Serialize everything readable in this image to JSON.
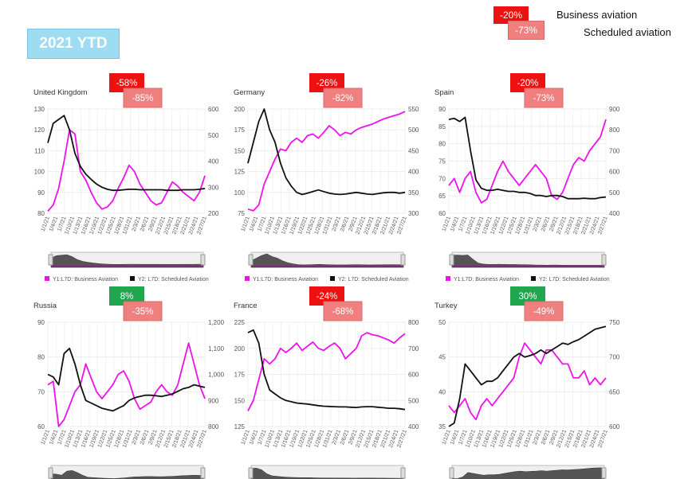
{
  "header": {
    "title": "2021 YTD",
    "legend": {
      "business_pct": "-20%",
      "business_label": "Business aviation",
      "scheduled_pct": "-73%",
      "scheduled_label": "Scheduled aviation"
    }
  },
  "colors": {
    "business": "#ee11ee",
    "scheduled": "#111111",
    "badge_red": "#ee1111",
    "badge_pink": "#f08080",
    "badge_green": "#1fa64f"
  },
  "series_legend": {
    "y1": "Y1:L7D: Business Aviation",
    "y2": "Y2: L7D: Scheduled Aviation"
  },
  "x_ticks": [
    "1/1/21",
    "1/4/21",
    "1/7/21",
    "1/10/21",
    "1/13/21",
    "1/16/21",
    "1/19/21",
    "1/22/21",
    "1/25/21",
    "1/28/21",
    "1/31/21",
    "2/3/21",
    "2/6/21",
    "2/9/21",
    "2/12/21",
    "2/15/21",
    "2/18/21",
    "2/21/21",
    "2/24/21",
    "2/27/21"
  ],
  "chart_data": [
    {
      "type": "line",
      "title": "United Kingdom",
      "business_pct": "-58%",
      "scheduled_pct": "-85%",
      "business_badge": "red",
      "y1_ticks": [
        "80",
        "90",
        "100",
        "110",
        "120",
        "130"
      ],
      "y1lim": [
        80,
        130
      ],
      "y2_ticks": [
        "200",
        "300",
        "400",
        "500",
        "600"
      ],
      "y2lim": [
        200,
        600
      ],
      "series": [
        {
          "name": "Y1:L7D: Business Aviation",
          "axis": "y1",
          "values": [
            81,
            84,
            92,
            105,
            120,
            118,
            100,
            96,
            90,
            85,
            82,
            83,
            86,
            92,
            97,
            103,
            100,
            94,
            90,
            86,
            84,
            85,
            90,
            95,
            93,
            90,
            88,
            86,
            90,
            98
          ]
        },
        {
          "name": "Y2: L7D: Scheduled Aviation",
          "axis": "y2",
          "values": [
            470,
            545,
            560,
            575,
            520,
            430,
            380,
            350,
            330,
            312,
            300,
            292,
            288,
            288,
            290,
            292,
            292,
            290,
            290,
            290,
            290,
            290,
            288,
            288,
            288,
            290,
            290,
            290,
            292,
            295
          ]
        }
      ]
    },
    {
      "type": "line",
      "title": "Germany",
      "business_pct": "-26%",
      "scheduled_pct": "-82%",
      "business_badge": "red",
      "y1_ticks": [
        "75",
        "100",
        "125",
        "150",
        "175",
        "200"
      ],
      "y1lim": [
        75,
        200
      ],
      "y2_ticks": [
        "300",
        "350",
        "400",
        "450",
        "500",
        "550"
      ],
      "y2lim": [
        300,
        550
      ],
      "series": [
        {
          "name": "Y1:L7D: Business Aviation",
          "axis": "y1",
          "values": [
            80,
            78,
            85,
            110,
            125,
            140,
            152,
            150,
            160,
            165,
            160,
            168,
            170,
            165,
            172,
            180,
            175,
            168,
            172,
            170,
            175,
            178,
            180,
            182,
            185,
            188,
            190,
            192,
            194,
            197
          ]
        },
        {
          "name": "Y2: L7D: Scheduled Aviation",
          "axis": "y2",
          "values": [
            420,
            470,
            520,
            550,
            500,
            470,
            420,
            385,
            365,
            350,
            345,
            348,
            352,
            356,
            352,
            348,
            346,
            345,
            346,
            348,
            350,
            348,
            346,
            345,
            347,
            349,
            350,
            350,
            348,
            350
          ]
        }
      ]
    },
    {
      "type": "line",
      "title": "Spain",
      "business_pct": "-20%",
      "scheduled_pct": "-73%",
      "business_badge": "red",
      "y1_ticks": [
        "60",
        "65",
        "70",
        "75",
        "80",
        "85",
        "90"
      ],
      "y1lim": [
        60,
        90
      ],
      "y2_ticks": [
        "400",
        "500",
        "600",
        "700",
        "800",
        "900"
      ],
      "y2lim": [
        400,
        900
      ],
      "series": [
        {
          "name": "Y1:L7D: Business Aviation",
          "axis": "y1",
          "values": [
            68,
            70,
            66,
            70,
            72,
            66,
            63,
            64,
            68,
            72,
            75,
            72,
            70,
            68,
            70,
            72,
            74,
            72,
            70,
            65,
            64,
            66,
            70,
            74,
            76,
            75,
            78,
            80,
            82,
            87
          ]
        },
        {
          "name": "Y2: L7D: Scheduled Aviation",
          "axis": "y2",
          "values": [
            850,
            855,
            840,
            860,
            700,
            560,
            520,
            510,
            510,
            515,
            510,
            505,
            505,
            500,
            500,
            495,
            485,
            485,
            480,
            485,
            485,
            480,
            470,
            470,
            470,
            472,
            470,
            470,
            475,
            478
          ]
        }
      ]
    },
    {
      "type": "line",
      "title": "Russia",
      "business_pct": "8%",
      "scheduled_pct": "-35%",
      "business_badge": "green",
      "y1_ticks": [
        "60",
        "70",
        "80",
        "90"
      ],
      "y1lim": [
        60,
        90
      ],
      "y2_ticks": [
        "800",
        "900",
        "1,000",
        "1,100",
        "1,200"
      ],
      "y2lim": [
        800,
        1200
      ],
      "series": [
        {
          "name": "Y1:L7D: Business Aviation",
          "axis": "y1",
          "values": [
            72,
            73,
            60,
            62,
            66,
            70,
            72,
            78,
            74,
            70,
            68,
            70,
            72,
            75,
            76,
            73,
            68,
            65,
            66,
            67,
            70,
            72,
            70,
            69,
            72,
            78,
            84,
            78,
            72,
            68
          ]
        },
        {
          "name": "Y2: L7D: Scheduled Aviation",
          "axis": "y2",
          "values": [
            1000,
            990,
            960,
            1080,
            1100,
            1040,
            960,
            900,
            890,
            880,
            870,
            865,
            860,
            870,
            880,
            900,
            910,
            915,
            920,
            920,
            918,
            915,
            920,
            925,
            935,
            945,
            950,
            960,
            955,
            950
          ]
        }
      ]
    },
    {
      "type": "line",
      "title": "France",
      "business_pct": "-24%",
      "scheduled_pct": "-68%",
      "business_badge": "red",
      "y1_ticks": [
        "125",
        "150",
        "175",
        "200",
        "225"
      ],
      "y1lim": [
        125,
        225
      ],
      "y2_ticks": [
        "400",
        "500",
        "600",
        "700",
        "800"
      ],
      "y2lim": [
        400,
        800
      ],
      "series": [
        {
          "name": "Y1:L7D: Business Aviation",
          "axis": "y1",
          "values": [
            140,
            150,
            170,
            190,
            185,
            190,
            200,
            196,
            200,
            205,
            198,
            202,
            206,
            200,
            198,
            202,
            205,
            200,
            190,
            195,
            200,
            212,
            215,
            213,
            212,
            210,
            208,
            205,
            210,
            214
          ]
        },
        {
          "name": "Y2: L7D: Scheduled Aviation",
          "axis": "y2",
          "values": [
            760,
            770,
            720,
            600,
            540,
            525,
            510,
            500,
            495,
            490,
            488,
            486,
            483,
            480,
            478,
            477,
            476,
            475,
            475,
            474,
            473,
            475,
            476,
            476,
            474,
            472,
            470,
            470,
            468,
            465
          ]
        }
      ]
    },
    {
      "type": "line",
      "title": "Turkey",
      "business_pct": "30%",
      "scheduled_pct": "-49%",
      "business_badge": "green",
      "y1_ticks": [
        "35",
        "40",
        "45",
        "50"
      ],
      "y1lim": [
        35,
        50
      ],
      "y2_ticks": [
        "600",
        "650",
        "700",
        "750"
      ],
      "y2lim": [
        600,
        750
      ],
      "series": [
        {
          "name": "Y1:L7D: Business Aviation",
          "axis": "y1",
          "values": [
            38,
            37,
            38,
            39,
            37,
            36,
            38,
            39,
            38,
            39,
            40,
            41,
            42,
            45,
            47,
            46,
            45,
            44,
            46,
            46,
            45,
            44,
            44,
            42,
            42,
            43,
            41,
            42,
            41,
            42
          ]
        },
        {
          "name": "Y2: L7D: Scheduled Aviation",
          "axis": "y2",
          "values": [
            600,
            605,
            640,
            690,
            680,
            670,
            660,
            665,
            665,
            670,
            680,
            690,
            700,
            705,
            700,
            702,
            705,
            710,
            705,
            710,
            715,
            720,
            718,
            722,
            725,
            730,
            735,
            740,
            742,
            744
          ]
        }
      ]
    }
  ]
}
